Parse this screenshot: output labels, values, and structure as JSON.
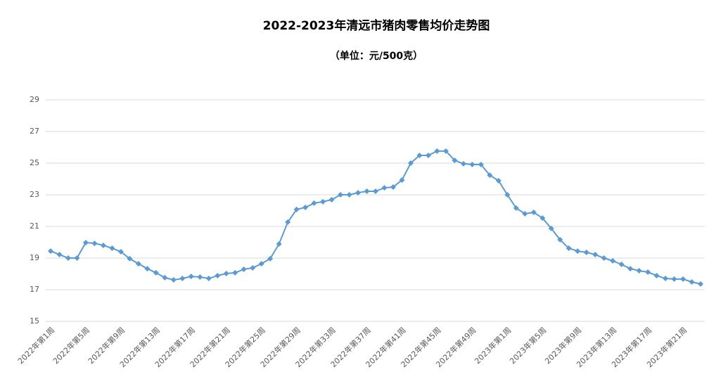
{
  "chart_data": {
    "type": "line",
    "title": "2022-2023年清远市猪肉零售均价走势图",
    "subtitle": "（单位：元/500克）",
    "categories": [
      "2022年第1周",
      null,
      null,
      null,
      "2022年第5周",
      null,
      null,
      null,
      "2022年第9周",
      null,
      null,
      null,
      "2022年第13周",
      null,
      null,
      null,
      "2022年第17周",
      null,
      null,
      null,
      "2022年第21周",
      null,
      null,
      null,
      "2022年第25周",
      null,
      null,
      null,
      "2022年第29周",
      null,
      null,
      null,
      "2022年第33周",
      null,
      null,
      null,
      "2022年第37周",
      null,
      null,
      null,
      "2022年第41周",
      null,
      null,
      null,
      "2022年第45周",
      null,
      null,
      null,
      "2022年第49周",
      null,
      null,
      null,
      "2023年第1周",
      null,
      null,
      null,
      "2023年第5周",
      null,
      null,
      null,
      "2023年第9周",
      null,
      null,
      null,
      "2023年第13周",
      null,
      null,
      null,
      "2023年第17周",
      null,
      null,
      null,
      "2023年第21周",
      null,
      null
    ],
    "values": [
      19.44,
      19.22,
      19.0,
      19.0,
      19.98,
      19.93,
      19.8,
      19.62,
      19.4,
      18.96,
      18.64,
      18.33,
      18.07,
      17.76,
      17.62,
      17.71,
      17.84,
      17.8,
      17.71,
      17.89,
      18.02,
      18.07,
      18.29,
      18.38,
      18.64,
      18.96,
      19.89,
      21.27,
      22.07,
      22.2,
      22.47,
      22.56,
      22.69,
      23.0,
      23.0,
      23.13,
      23.22,
      23.22,
      23.44,
      23.49,
      23.93,
      25.0,
      25.49,
      25.49,
      25.76,
      25.76,
      25.18,
      24.96,
      24.91,
      24.91,
      24.24,
      23.89,
      23.0,
      22.16,
      21.8,
      21.89,
      21.53,
      20.87,
      20.16,
      19.62,
      19.44,
      19.36,
      19.22,
      19.0,
      18.82,
      18.6,
      18.33,
      18.2,
      18.11,
      17.89,
      17.71,
      17.67,
      17.67,
      17.49,
      17.36
    ],
    "color": "#5b9bd5",
    "ylim": [
      15,
      29
    ],
    "yticks": [
      15,
      17,
      19,
      21,
      23,
      25,
      27,
      29
    ],
    "grid": true
  }
}
